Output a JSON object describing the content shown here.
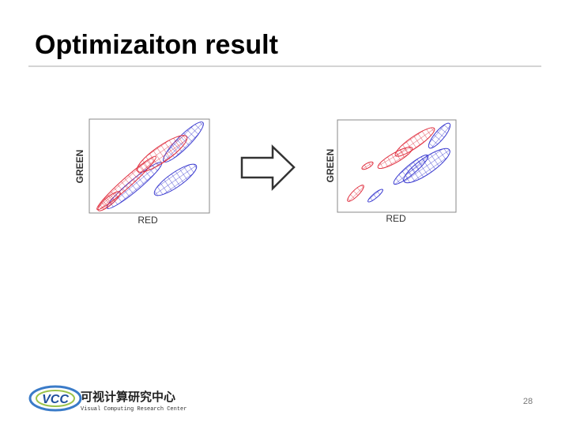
{
  "header": {
    "title": "Optimizaiton result"
  },
  "panels": [
    {
      "y_label": "GREEN",
      "x_label": "RED"
    },
    {
      "y_label": "GREEN",
      "x_label": "RED"
    }
  ],
  "logo": {
    "abbr": "VCC",
    "name_cn": "可视计算研究中心",
    "name_en": "Visual Computing Research Center"
  },
  "footer": {
    "page_number": "28"
  }
}
